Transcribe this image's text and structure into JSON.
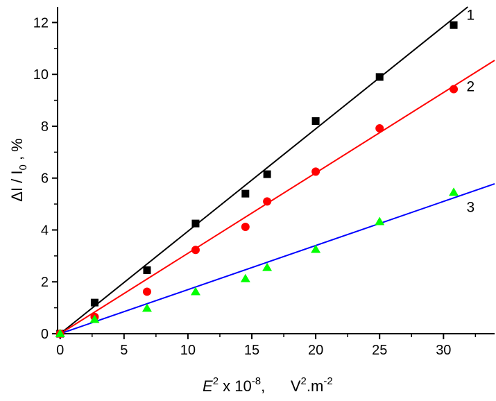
{
  "chart_data": {
    "type": "scatter",
    "title": "",
    "xlabel": {
      "main": "E",
      "sup1": "2",
      "mid": " x 10",
      "sup2": "-8",
      "units_lead": ",      V",
      "sup3": "2",
      "units_tail": ".m",
      "sup4": "-2"
    },
    "ylabel": {
      "delta": "ΔI / I",
      "sub": "0",
      "tail": " ,   %"
    },
    "xlim": [
      -0.2,
      34
    ],
    "ylim": [
      0,
      12.6
    ],
    "x_ticks": [
      0,
      5,
      10,
      15,
      20,
      25,
      30
    ],
    "y_ticks": [
      0,
      2,
      4,
      6,
      8,
      10,
      12
    ],
    "grid": false,
    "series": [
      {
        "name": "1",
        "color": "#000000",
        "marker": "square",
        "x": [
          0,
          2.7,
          6.8,
          10.6,
          14.5,
          16.2,
          20.0,
          25.0,
          30.8
        ],
        "y": [
          0.0,
          1.2,
          2.45,
          4.25,
          5.4,
          6.15,
          8.2,
          9.9,
          11.9
        ],
        "fit": {
          "x0": 0,
          "y0": 0,
          "slope": 0.395
        }
      },
      {
        "name": "2",
        "color": "#ff0000",
        "marker": "circle",
        "x": [
          0,
          2.7,
          6.8,
          10.6,
          14.5,
          16.2,
          20.0,
          25.0,
          30.8
        ],
        "y": [
          0.0,
          0.65,
          1.62,
          3.23,
          4.12,
          5.1,
          6.25,
          7.92,
          9.43
        ],
        "fit": {
          "x0": 0,
          "y0": 0,
          "slope": 0.31
        }
      },
      {
        "name": "3",
        "color": "#00ff00",
        "line_color": "#0000ff",
        "marker": "triangle",
        "x": [
          0,
          2.7,
          6.8,
          10.6,
          14.5,
          16.2,
          20.0,
          25.0,
          30.8
        ],
        "y": [
          0.0,
          0.55,
          0.98,
          1.62,
          2.12,
          2.55,
          3.25,
          4.32,
          5.45
        ],
        "fit": {
          "x0": 0,
          "y0": 0,
          "slope": 0.17
        }
      }
    ]
  }
}
